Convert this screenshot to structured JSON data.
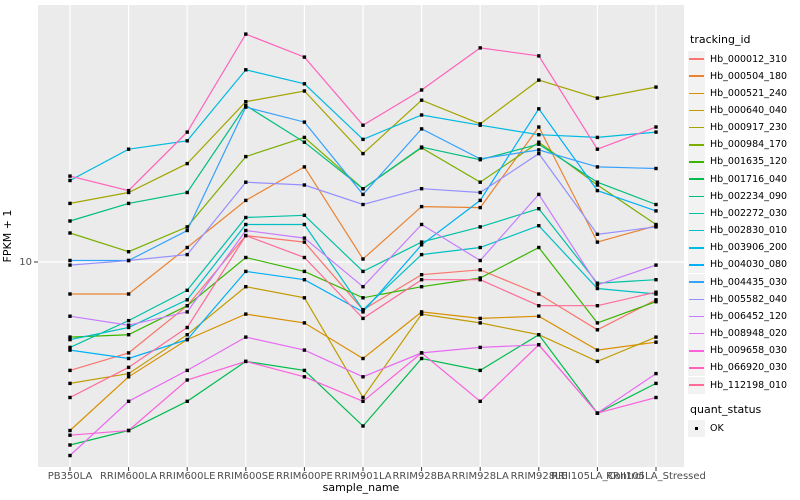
{
  "chart_data": {
    "type": "line",
    "title": "",
    "xlabel": "sample_name",
    "ylabel": "FPKM + 1",
    "y_scale": "log10",
    "ylim": [
      2.5,
      50
    ],
    "y_ticks": [
      10
    ],
    "y_tick_labels": [
      "10"
    ],
    "grid": "white-on-gray",
    "panel_bg": "#EBEBEB",
    "grid_color": "#FFFFFF",
    "axis_text_color": "#4D4D4D",
    "point_color": "#000000",
    "point_shape": "square",
    "legend_position": "right",
    "categories": [
      "PB350LA",
      "RRIM600LA",
      "RRIM600LE",
      "RRIM600SE",
      "RRIM600PE",
      "RRIM901LA",
      "RRIM928BA",
      "RRIM928LA",
      "RRIM928LE",
      "RRII105LA_Control",
      "RRII105LA_Stressed"
    ],
    "series": [
      {
        "name": "Hb_000012_310",
        "color": "#F8766D",
        "values": [
          4.9,
          5.5,
          7.5,
          11.9,
          11.4,
          7.3,
          9.2,
          9.5,
          8.1,
          6.4,
          7.8
        ]
      },
      {
        "name": "Hb_000504_180",
        "color": "#EA8331",
        "values": [
          8.1,
          8.1,
          11.0,
          15.0,
          18.7,
          10.2,
          14.4,
          14.3,
          24.3,
          11.4,
          12.7
        ]
      },
      {
        "name": "Hb_000521_240",
        "color": "#D89000",
        "values": [
          3.3,
          4.7,
          6.0,
          7.1,
          6.7,
          5.3,
          7.2,
          6.9,
          7.0,
          5.6,
          5.9
        ]
      },
      {
        "name": "Hb_000640_040",
        "color": "#C09B00",
        "values": [
          4.5,
          4.8,
          6.2,
          8.5,
          7.9,
          4.1,
          7.1,
          6.7,
          6.2,
          5.2,
          6.1
        ]
      },
      {
        "name": "Hb_000917_230",
        "color": "#A3A500",
        "values": [
          14.7,
          15.8,
          19.1,
          28.7,
          30.8,
          20.4,
          29.0,
          24.8,
          33.1,
          29.4,
          31.6
        ]
      },
      {
        "name": "Hb_000984_170",
        "color": "#7CAE00",
        "values": [
          12.1,
          10.7,
          12.6,
          20.0,
          22.7,
          16.2,
          21.2,
          16.9,
          22.0,
          16.6,
          12.8
        ]
      },
      {
        "name": "Hb_001635_120",
        "color": "#39B600",
        "values": [
          6.1,
          6.2,
          7.5,
          10.3,
          9.4,
          7.9,
          8.5,
          9.0,
          11.0,
          6.7,
          7.7
        ]
      },
      {
        "name": "Hb_001716_040",
        "color": "#00BB4E",
        "values": [
          3.0,
          3.3,
          4.0,
          5.2,
          4.9,
          3.4,
          5.3,
          4.9,
          6.2,
          3.7,
          4.5
        ]
      },
      {
        "name": "Hb_002234_090",
        "color": "#00BF7D",
        "values": [
          13.1,
          14.7,
          15.8,
          28.0,
          22.0,
          16.2,
          21.3,
          19.6,
          21.7,
          16.9,
          14.6
        ]
      },
      {
        "name": "Hb_002272_030",
        "color": "#00C1A3",
        "values": [
          5.7,
          6.8,
          8.3,
          13.4,
          13.6,
          9.4,
          11.4,
          12.6,
          14.2,
          8.7,
          8.9
        ]
      },
      {
        "name": "Hb_002830_010",
        "color": "#00BFC4",
        "values": [
          6.0,
          6.5,
          7.8,
          12.8,
          12.8,
          7.3,
          10.5,
          11.0,
          12.7,
          8.4,
          8.1
        ]
      },
      {
        "name": "Hb_003906_200",
        "color": "#00BAE0",
        "values": [
          17.1,
          21.0,
          22.2,
          35.4,
          32.3,
          22.4,
          26.3,
          24.6,
          23.1,
          22.7,
          23.5
        ]
      },
      {
        "name": "Hb_004030_080",
        "color": "#00B0F6",
        "values": [
          5.6,
          5.3,
          6.0,
          9.4,
          8.9,
          7.2,
          11.2,
          15.0,
          27.4,
          16.0,
          14.0
        ]
      },
      {
        "name": "Hb_004435_030",
        "color": "#35A2FF",
        "values": [
          10.1,
          10.1,
          12.3,
          27.7,
          25.1,
          15.6,
          24.0,
          19.7,
          20.9,
          18.7,
          18.5
        ]
      },
      {
        "name": "Hb_005582_040",
        "color": "#9590FF",
        "values": [
          9.8,
          10.1,
          10.5,
          16.9,
          16.6,
          14.6,
          16.2,
          15.8,
          20.4,
          12.0,
          12.6
        ]
      },
      {
        "name": "Hb_006452_120",
        "color": "#C77CFF",
        "values": [
          7.0,
          6.6,
          7.2,
          12.3,
          11.7,
          8.5,
          12.8,
          10.1,
          15.6,
          8.6,
          9.8
        ]
      },
      {
        "name": "Hb_008948_020",
        "color": "#E76BF3",
        "values": [
          2.8,
          4.0,
          4.9,
          6.1,
          5.6,
          4.7,
          5.5,
          5.7,
          5.8,
          3.7,
          4.8
        ]
      },
      {
        "name": "Hb_009658_030",
        "color": "#FA62DB",
        "values": [
          3.2,
          3.3,
          4.6,
          5.2,
          4.7,
          4.0,
          5.5,
          4.0,
          5.8,
          3.7,
          4.1
        ]
      },
      {
        "name": "Hb_066920_030",
        "color": "#FF62BC",
        "values": [
          17.6,
          16.0,
          23.5,
          44.8,
          38.5,
          24.6,
          31.0,
          40.9,
          38.8,
          21.0,
          24.3
        ]
      },
      {
        "name": "Hb_112198_010",
        "color": "#FF6A98",
        "values": [
          4.1,
          5.0,
          6.5,
          11.9,
          10.3,
          6.9,
          8.9,
          8.9,
          7.5,
          7.5,
          8.2
        ]
      }
    ],
    "legend": {
      "color_title": "tracking_id",
      "shape_title": "quant_status",
      "shape_items": [
        {
          "label": "OK"
        }
      ]
    }
  }
}
